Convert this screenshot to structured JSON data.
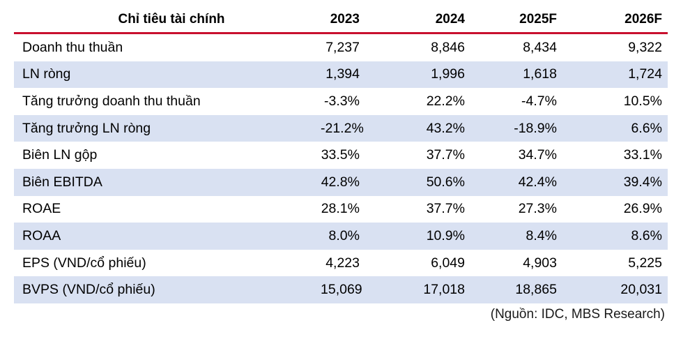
{
  "table": {
    "headers": [
      "Chỉ tiêu tài chính",
      "2023",
      "2024",
      "2025F",
      "2026F"
    ],
    "rows": [
      [
        "Doanh thu thuần",
        "7,237",
        "8,846",
        "8,434",
        "9,322"
      ],
      [
        "LN ròng",
        "1,394",
        "1,996",
        "1,618",
        "1,724"
      ],
      [
        "Tăng trưởng doanh thu thuần",
        "-3.3%",
        "22.2%",
        "-4.7%",
        "10.5%"
      ],
      [
        "Tăng trưởng LN ròng",
        "-21.2%",
        "43.2%",
        "-18.9%",
        "6.6%"
      ],
      [
        "Biên LN gộp",
        "33.5%",
        "37.7%",
        "34.7%",
        "33.1%"
      ],
      [
        "Biên EBITDA",
        "42.8%",
        "50.6%",
        "42.4%",
        "39.4%"
      ],
      [
        "ROAE",
        "28.1%",
        "37.7%",
        "27.3%",
        "26.9%"
      ],
      [
        "ROAA",
        "8.0%",
        "10.9%",
        "8.4%",
        "8.6%"
      ],
      [
        "EPS (VND/cổ phiếu)",
        "4,223",
        "6,049",
        "4,903",
        "5,225"
      ],
      [
        "BVPS (VND/cổ phiếu)",
        "15,069",
        "17,018",
        "18,865",
        "20,031"
      ]
    ]
  },
  "source_note": "(Nguồn: IDC, MBS Research)",
  "colors": {
    "header_rule": "#c8102e",
    "row_shade": "#d9e1f2"
  }
}
